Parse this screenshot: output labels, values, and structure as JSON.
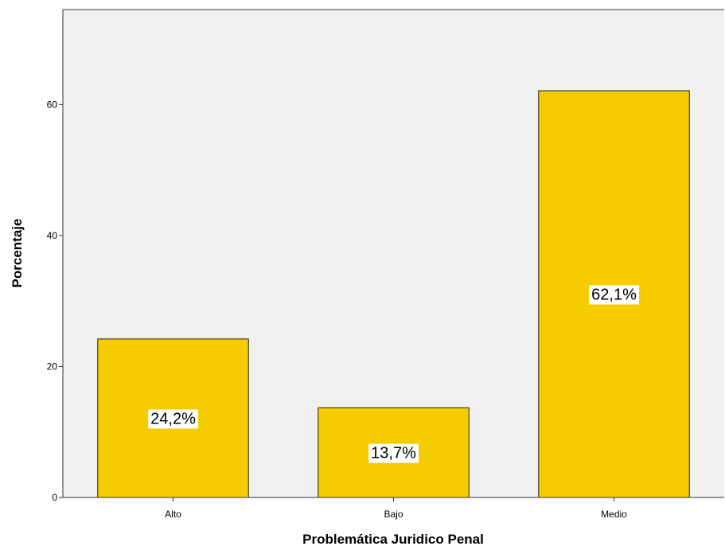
{
  "chart_data": {
    "type": "bar",
    "title": "",
    "xlabel": "Problemática Juridico Penal",
    "ylabel": "Porcentaje",
    "categories": [
      "Alto",
      "Bajo",
      "Medio"
    ],
    "values": [
      24.2,
      13.7,
      62.1
    ],
    "data_labels": [
      "24,2%",
      "13,7%",
      "62,1%"
    ],
    "yticks": [
      0,
      20,
      40,
      60
    ],
    "ytick_labels": [
      "0",
      "20",
      "40",
      "60"
    ],
    "ylim": [
      0,
      74.5
    ],
    "grid": false,
    "legend": "none",
    "colors": {
      "bar_fill": "#F5CC00",
      "bar_stroke": "#222222",
      "plot_background": "#F0F0F0",
      "label_background": "#FFFFFF"
    }
  }
}
